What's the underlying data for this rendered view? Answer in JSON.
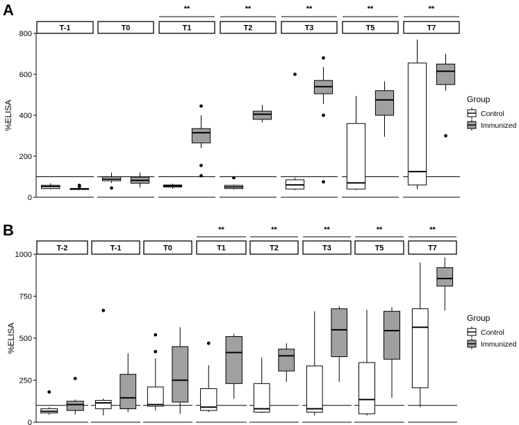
{
  "chart_data": [
    {
      "type": "box",
      "panel_label": "A",
      "ylabel": "%ELISA",
      "xlabel": "",
      "ylim": [
        0,
        800
      ],
      "yticks": [
        0,
        200,
        400,
        600,
        800
      ],
      "reference_line": 100,
      "grid": false,
      "legend": {
        "title": "Group",
        "position": "right",
        "entries": [
          "Control",
          "Immunized"
        ]
      },
      "series_colors": {
        "Control": "#ffffff",
        "Immunized": "#a0a0a0"
      },
      "facets": [
        {
          "label": "T-1",
          "sig": "",
          "boxes": [
            {
              "group": "Control",
              "whislo": 38,
              "q1": 42,
              "med": 52,
              "q3": 58,
              "whishi": 68,
              "outliers": []
            },
            {
              "group": "Immunized",
              "whislo": 36,
              "q1": 38,
              "med": 40,
              "q3": 43,
              "whishi": 46,
              "outliers": [
                52,
                58
              ]
            }
          ]
        },
        {
          "label": "T0",
          "sig": "",
          "boxes": [
            {
              "group": "Control",
              "whislo": 70,
              "q1": 80,
              "med": 88,
              "q3": 98,
              "whishi": 120,
              "outliers": [
                45
              ]
            },
            {
              "group": "Immunized",
              "whislo": 48,
              "q1": 68,
              "med": 82,
              "q3": 98,
              "whishi": 120,
              "outliers": []
            }
          ]
        },
        {
          "label": "T1",
          "sig": "**",
          "boxes": [
            {
              "group": "Control",
              "whislo": 42,
              "q1": 50,
              "med": 55,
              "q3": 60,
              "whishi": 66,
              "outliers": []
            },
            {
              "group": "Immunized",
              "whislo": 240,
              "q1": 265,
              "med": 315,
              "q3": 335,
              "whishi": 400,
              "outliers": [
                445,
                155,
                105
              ]
            }
          ]
        },
        {
          "label": "T2",
          "sig": "**",
          "boxes": [
            {
              "group": "Control",
              "whislo": 38,
              "q1": 42,
              "med": 50,
              "q3": 58,
              "whishi": 62,
              "outliers": [
                95
              ]
            },
            {
              "group": "Immunized",
              "whislo": 365,
              "q1": 380,
              "med": 405,
              "q3": 420,
              "whishi": 450,
              "outliers": []
            }
          ]
        },
        {
          "label": "T3",
          "sig": "**",
          "boxes": [
            {
              "group": "Control",
              "whislo": 35,
              "q1": 40,
              "med": 60,
              "q3": 85,
              "whishi": 95,
              "outliers": [
                600
              ]
            },
            {
              "group": "Immunized",
              "whislo": 455,
              "q1": 505,
              "med": 540,
              "q3": 570,
              "whishi": 635,
              "outliers": [
                680,
                400,
                75
              ]
            }
          ]
        },
        {
          "label": "T5",
          "sig": "**",
          "boxes": [
            {
              "group": "Control",
              "whislo": 35,
              "q1": 40,
              "med": 70,
              "q3": 360,
              "whishi": 495,
              "outliers": []
            },
            {
              "group": "Immunized",
              "whislo": 295,
              "q1": 400,
              "med": 475,
              "q3": 520,
              "whishi": 565,
              "outliers": []
            }
          ]
        },
        {
          "label": "T7",
          "sig": "**",
          "boxes": [
            {
              "group": "Control",
              "whislo": 40,
              "q1": 60,
              "med": 125,
              "q3": 655,
              "whishi": 770,
              "outliers": []
            },
            {
              "group": "Immunized",
              "whislo": 520,
              "q1": 550,
              "med": 615,
              "q3": 650,
              "whishi": 700,
              "outliers": [
                300
              ]
            }
          ]
        }
      ]
    },
    {
      "type": "box",
      "panel_label": "B",
      "ylabel": "%ELISA",
      "xlabel": "",
      "ylim": [
        0,
        1000
      ],
      "yticks": [
        0,
        250,
        500,
        750,
        1000
      ],
      "reference_line": 100,
      "grid": false,
      "legend": {
        "title": "Group",
        "position": "right",
        "entries": [
          "Control",
          "Immunized"
        ]
      },
      "series_colors": {
        "Control": "#ffffff",
        "Immunized": "#a0a0a0"
      },
      "facets": [
        {
          "label": "T-2",
          "sig": "",
          "boxes": [
            {
              "group": "Control",
              "whislo": 45,
              "q1": 55,
              "med": 65,
              "q3": 80,
              "whishi": 90,
              "outliers": [
                180
              ]
            },
            {
              "group": "Immunized",
              "whislo": 45,
              "q1": 70,
              "med": 105,
              "q3": 125,
              "whishi": 135,
              "outliers": [
                260
              ]
            }
          ]
        },
        {
          "label": "T-1",
          "sig": "",
          "boxes": [
            {
              "group": "Control",
              "whislo": 40,
              "q1": 80,
              "med": 115,
              "q3": 130,
              "whishi": 140,
              "outliers": [
                665
              ]
            },
            {
              "group": "Immunized",
              "whislo": 60,
              "q1": 80,
              "med": 145,
              "q3": 285,
              "whishi": 410,
              "outliers": []
            }
          ]
        },
        {
          "label": "T0",
          "sig": "",
          "boxes": [
            {
              "group": "Control",
              "whislo": 70,
              "q1": 95,
              "med": 105,
              "q3": 210,
              "whishi": 380,
              "outliers": [
                420,
                520
              ]
            },
            {
              "group": "Immunized",
              "whislo": 50,
              "q1": 120,
              "med": 250,
              "q3": 450,
              "whishi": 565,
              "outliers": []
            }
          ]
        },
        {
          "label": "T1",
          "sig": "**",
          "boxes": [
            {
              "group": "Control",
              "whislo": 60,
              "q1": 70,
              "med": 90,
              "q3": 200,
              "whishi": 340,
              "outliers": [
                470
              ]
            },
            {
              "group": "Immunized",
              "whislo": 140,
              "q1": 230,
              "med": 415,
              "q3": 510,
              "whishi": 525,
              "outliers": []
            }
          ]
        },
        {
          "label": "T2",
          "sig": "**",
          "boxes": [
            {
              "group": "Control",
              "whislo": 55,
              "q1": 60,
              "med": 80,
              "q3": 230,
              "whishi": 385,
              "outliers": []
            },
            {
              "group": "Immunized",
              "whislo": 240,
              "q1": 305,
              "med": 395,
              "q3": 435,
              "whishi": 470,
              "outliers": []
            }
          ]
        },
        {
          "label": "T3",
          "sig": "**",
          "boxes": [
            {
              "group": "Control",
              "whislo": 40,
              "q1": 60,
              "med": 80,
              "q3": 335,
              "whishi": 660,
              "outliers": []
            },
            {
              "group": "Immunized",
              "whislo": 240,
              "q1": 390,
              "med": 550,
              "q3": 675,
              "whishi": 690,
              "outliers": []
            }
          ]
        },
        {
          "label": "T5",
          "sig": "**",
          "boxes": [
            {
              "group": "Control",
              "whislo": 40,
              "q1": 50,
              "med": 135,
              "q3": 355,
              "whishi": 670,
              "outliers": []
            },
            {
              "group": "Immunized",
              "whislo": 145,
              "q1": 375,
              "med": 545,
              "q3": 660,
              "whishi": 685,
              "outliers": []
            }
          ]
        },
        {
          "label": "T7",
          "sig": "**",
          "boxes": [
            {
              "group": "Control",
              "whislo": 90,
              "q1": 205,
              "med": 565,
              "q3": 675,
              "whishi": 950,
              "outliers": []
            },
            {
              "group": "Immunized",
              "whislo": 665,
              "q1": 810,
              "med": 855,
              "q3": 920,
              "whishi": 980,
              "outliers": []
            }
          ]
        }
      ]
    }
  ]
}
